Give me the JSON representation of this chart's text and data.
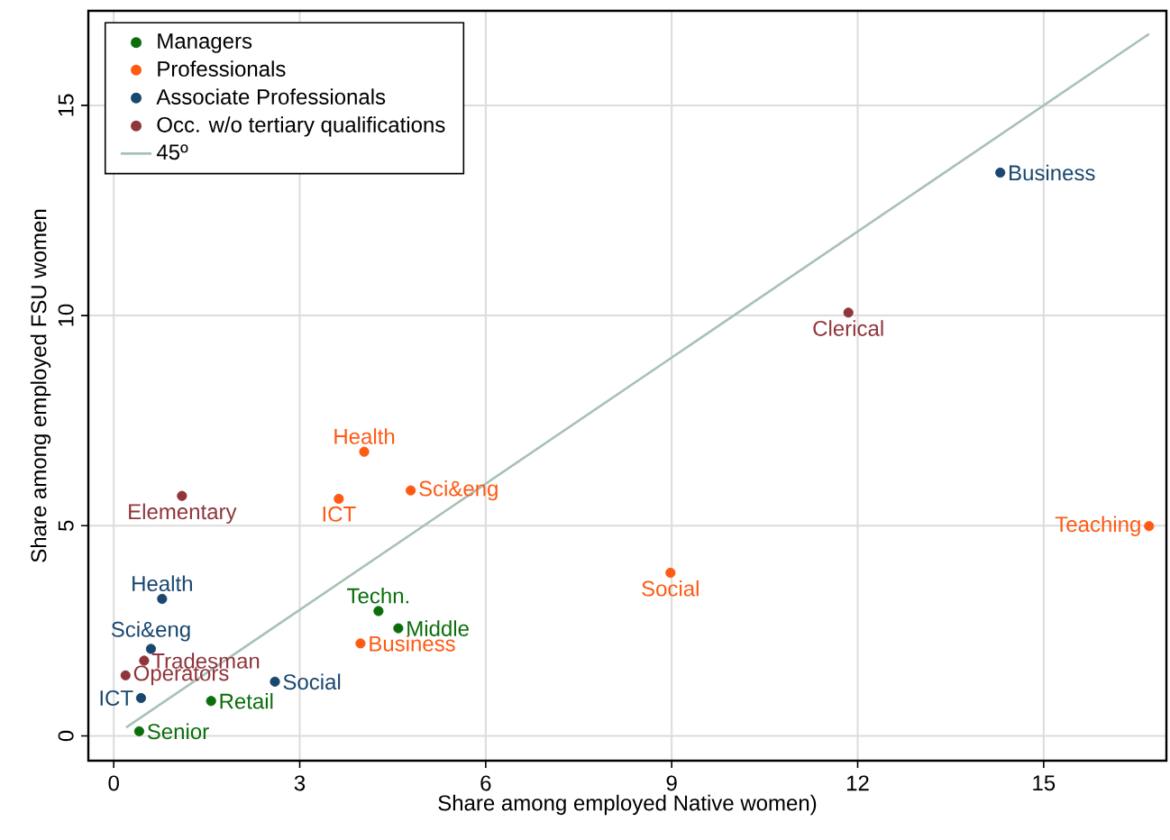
{
  "chart_data": {
    "type": "scatter",
    "xlabel": "Share among employed Native women)",
    "ylabel": "Share among employed FSU women",
    "xlim": [
      -0.41,
      16.98
    ],
    "ylim": [
      -0.59,
      17.25
    ],
    "xticks": [
      0,
      3,
      6,
      9,
      12,
      15
    ],
    "yticks": [
      0,
      5,
      10,
      15
    ],
    "grid": true,
    "legend": "top left",
    "series": [
      {
        "name": "Managers",
        "color": "#0b6e0b",
        "x": [
          4.27,
          4.59,
          1.57,
          0.41
        ],
        "values": [
          2.97,
          2.56,
          0.83,
          0.11
        ],
        "value_labels": [
          "Techn.",
          "Middle",
          "Retail",
          "Senior"
        ],
        "marker": "circle"
      },
      {
        "name": "Professionals",
        "color": "#ff5a14",
        "x": [
          4.04,
          3.63,
          4.79,
          3.98,
          8.98,
          16.7
        ],
        "values": [
          6.76,
          5.64,
          5.84,
          2.2,
          3.88,
          4.99
        ],
        "value_labels": [
          "Health",
          "ICT",
          "Sci&eng",
          "Business",
          "Social",
          "Teaching"
        ],
        "marker": "circle"
      },
      {
        "name": "Associate Professionals",
        "color": "#1a476f",
        "x": [
          14.3,
          0.78,
          0.6,
          2.6,
          0.44
        ],
        "values": [
          13.4,
          3.26,
          2.07,
          1.29,
          0.9
        ],
        "value_labels": [
          "Business",
          "Health",
          "Sci&eng",
          "Social",
          "ICT"
        ],
        "marker": "circle"
      },
      {
        "name": "Occ. w/o tertiary qualifications",
        "color": "#90353b",
        "x": [
          11.85,
          1.1,
          0.49,
          0.19
        ],
        "values": [
          10.07,
          5.71,
          1.79,
          1.44
        ],
        "value_labels": [
          "Clerical",
          "Elementary",
          "Tradesman",
          "Operators"
        ],
        "marker": "circle"
      },
      {
        "name": "45º",
        "type": "line",
        "color": "#a9c0b6",
        "x": [
          0.2,
          16.7
        ],
        "values": [
          0.2,
          16.7
        ],
        "marker": "none"
      }
    ]
  }
}
